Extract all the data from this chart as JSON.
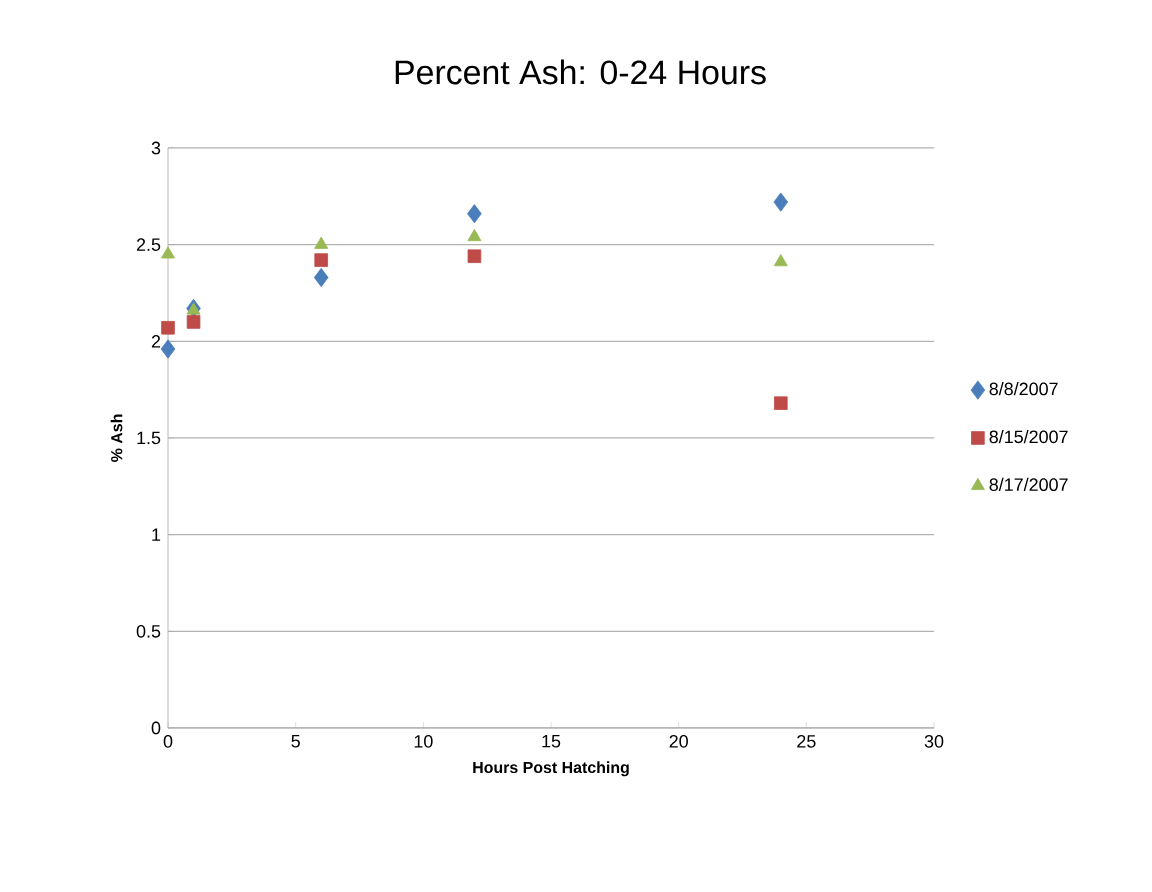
{
  "chart_data": {
    "type": "scatter",
    "title": "Percent Ash: 0-24 Hours",
    "xlabel": "Hours Post Hatching",
    "ylabel": "% Ash",
    "xlim": [
      0,
      30
    ],
    "xticks": [
      0,
      5,
      10,
      15,
      20,
      25,
      30
    ],
    "ylim": [
      0,
      3
    ],
    "yticks": [
      0,
      0.5,
      1,
      1.5,
      2,
      2.5,
      3
    ],
    "grid": "y",
    "legend": "right",
    "series": [
      {
        "name": "8/8/2007",
        "color": "#4a7ebb",
        "marker": "diamond",
        "x": [
          0,
          1,
          6,
          12,
          24
        ],
        "values": [
          1.96,
          2.17,
          2.33,
          2.66,
          2.72
        ]
      },
      {
        "name": "8/15/2007",
        "color": "#be4b48",
        "marker": "square",
        "x": [
          0,
          1,
          6,
          12,
          24
        ],
        "values": [
          2.07,
          2.1,
          2.42,
          2.44,
          1.68
        ]
      },
      {
        "name": "8/17/2007",
        "color": "#98b954",
        "marker": "triangle",
        "x": [
          0,
          1,
          6,
          12,
          24
        ],
        "values": [
          2.45,
          2.16,
          2.5,
          2.54,
          2.41
        ]
      }
    ]
  }
}
